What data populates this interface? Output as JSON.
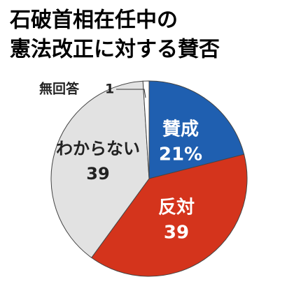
{
  "chart_data": {
    "type": "pie",
    "title": [
      "石破首相在任中の",
      "憲法改正に対する賛否"
    ],
    "categories": [
      "賛成",
      "反対",
      "わからない",
      "無回答"
    ],
    "values": [
      21,
      39,
      39,
      1
    ],
    "value_labels": [
      "21%",
      "39",
      "39",
      "1"
    ],
    "colors": [
      "#1f5fb0",
      "#d4341c",
      "#e2e2e2",
      "#ffffff"
    ]
  }
}
